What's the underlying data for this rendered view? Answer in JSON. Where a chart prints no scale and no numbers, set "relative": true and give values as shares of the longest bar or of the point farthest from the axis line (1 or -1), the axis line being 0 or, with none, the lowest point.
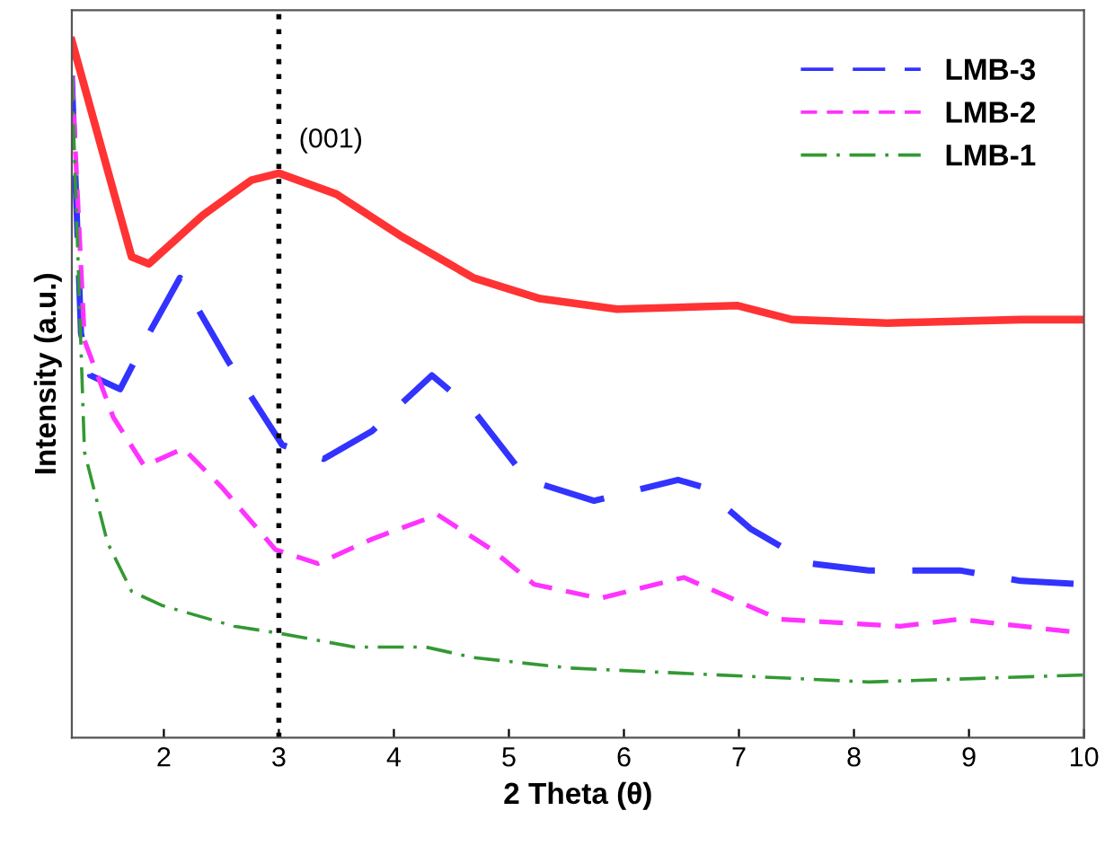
{
  "chart_data": {
    "type": "line",
    "relative": true,
    "xlabel": "2 Theta (θ)",
    "ylabel": "Intensity (a.u.)",
    "xlim": [
      1.2,
      10
    ],
    "xticks": [
      2,
      3,
      4,
      5,
      6,
      7,
      8,
      9,
      10
    ],
    "tick_labels": "x",
    "grid": false,
    "legend": "top right",
    "marker": "none",
    "ref_lines": [
      {
        "axis": "x",
        "value": 3,
        "color": "#000000",
        "line_style": "dotted"
      }
    ],
    "annotations": [
      {
        "text": "(001)",
        "x": 3,
        "y": 0.81
      }
    ],
    "series": [
      {
        "color": "#ff3333",
        "line_style": "solid",
        "x": [
          1.2,
          1.72,
          1.87,
          2.34,
          2.76,
          3.0,
          3.5,
          4.06,
          4.69,
          5.27,
          5.94,
          6.99,
          7.46,
          8.29,
          9.45,
          10
        ],
        "values": [
          1.0,
          0.69,
          0.68,
          0.75,
          0.8,
          0.81,
          0.78,
          0.72,
          0.66,
          0.63,
          0.615,
          0.62,
          0.6,
          0.595,
          0.6,
          0.6
        ]
      },
      {
        "name": "LMB-3",
        "color": "#3333ff",
        "line_style": "long dashed",
        "x": [
          1.2,
          1.28,
          1.36,
          1.62,
          1.87,
          2.14,
          2.56,
          3.03,
          3.39,
          3.81,
          4.33,
          4.69,
          5.16,
          5.74,
          6.47,
          6.68,
          7.1,
          7.62,
          8.13,
          8.92,
          9.45,
          10
        ],
        "values": [
          0.95,
          0.58,
          0.52,
          0.5,
          0.58,
          0.66,
          0.54,
          0.42,
          0.4,
          0.44,
          0.52,
          0.47,
          0.37,
          0.34,
          0.37,
          0.36,
          0.3,
          0.25,
          0.24,
          0.24,
          0.225,
          0.22
        ]
      },
      {
        "name": "LMB-2",
        "color": "#ff33ff",
        "line_style": "dashed",
        "x": [
          1.2,
          1.31,
          1.56,
          1.83,
          2.17,
          2.5,
          2.97,
          3.34,
          3.81,
          4.38,
          4.85,
          5.22,
          5.79,
          6.52,
          7.35,
          8.4,
          8.92,
          10
        ],
        "values": [
          0.95,
          0.57,
          0.46,
          0.39,
          0.415,
          0.36,
          0.27,
          0.25,
          0.285,
          0.32,
          0.27,
          0.22,
          0.2,
          0.23,
          0.17,
          0.16,
          0.17,
          0.15
        ]
      },
      {
        "name": "LMB-1",
        "color": "#339933",
        "line_style": "dashdot",
        "x": [
          1.2,
          1.31,
          1.51,
          1.72,
          1.98,
          2.61,
          3.0,
          3.66,
          4.28,
          4.69,
          5.53,
          6.83,
          8.13,
          10
        ],
        "values": [
          0.95,
          0.41,
          0.28,
          0.21,
          0.19,
          0.16,
          0.15,
          0.13,
          0.13,
          0.115,
          0.1,
          0.09,
          0.08,
          0.09
        ]
      }
    ]
  }
}
